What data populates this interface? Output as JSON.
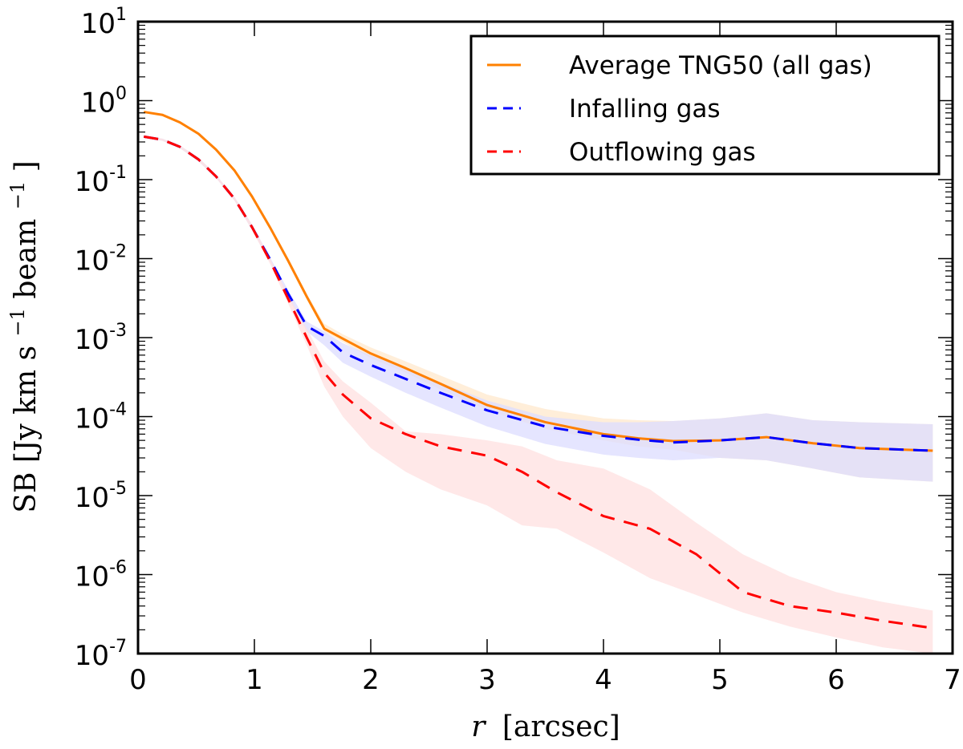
{
  "chart_data": {
    "type": "line",
    "title": "",
    "xlabel": "r [arcsec]",
    "xlabel_var": "r",
    "xlabel_unit": "[arcsec]",
    "ylabel": "SB [Jy km s^-1 beam^-1]",
    "ylabel_parts": {
      "main": "SB",
      "unit_open": "[Jy km s",
      "sup1": "−1",
      "mid": " beam",
      "sup2": "−1",
      "close": "]"
    },
    "xlim": [
      0,
      7
    ],
    "ylim": [
      1e-07,
      10
    ],
    "yscale": "log",
    "grid": false,
    "legend_position": "top-right",
    "xticks": [
      0,
      1,
      2,
      3,
      4,
      5,
      6,
      7
    ],
    "xtick_labels": [
      "0",
      "1",
      "2",
      "3",
      "4",
      "5",
      "6",
      "7"
    ],
    "yticks_exp": [
      1,
      0,
      -1,
      -2,
      -3,
      -4,
      -5,
      -6,
      -7
    ],
    "ytick_base": "10",
    "series": [
      {
        "name": "Average TNG50 (all gas)",
        "color": "#ff8000",
        "style": "solid",
        "band_color": "#ffe8cc",
        "x": [
          0.05,
          0.21,
          0.36,
          0.52,
          0.67,
          0.83,
          0.98,
          1.14,
          1.29,
          1.45,
          1.6,
          1.76,
          2.0,
          2.3,
          2.6,
          3.0,
          3.5,
          4.0,
          4.3,
          4.6,
          5.0,
          5.4,
          5.8,
          6.2,
          6.83
        ],
        "values": [
          0.72,
          0.66,
          0.53,
          0.38,
          0.24,
          0.13,
          0.061,
          0.024,
          0.0094,
          0.0033,
          0.0013,
          0.00097,
          0.00063,
          0.00041,
          0.00026,
          0.00014,
          8.5e-05,
          6e-05,
          5.3e-05,
          4.9e-05,
          5e-05,
          5.5e-05,
          4.6e-05,
          4e-05,
          3.7e-05
        ],
        "lower": [
          0.7,
          0.64,
          0.51,
          0.37,
          0.23,
          0.125,
          0.058,
          0.023,
          0.009,
          0.0031,
          0.0012,
          0.00088,
          0.00055,
          0.00036,
          0.00022,
          0.00012,
          7e-05,
          5e-05,
          4.2e-05,
          3.8e-05,
          3e-05,
          2.8e-05,
          2.2e-05,
          1.7e-05,
          1.5e-05
        ],
        "upper": [
          0.74,
          0.68,
          0.55,
          0.4,
          0.25,
          0.135,
          0.064,
          0.025,
          0.0099,
          0.0036,
          0.0015,
          0.0011,
          0.00075,
          0.0005,
          0.00033,
          0.00019,
          0.000125,
          9.5e-05,
          9e-05,
          8.8e-05,
          9.5e-05,
          0.00011,
          9e-05,
          8.5e-05,
          8e-05
        ]
      },
      {
        "name": "Infalling gas",
        "color": "#0000ff",
        "style": "dashed",
        "band_color": "#dcdcff",
        "x": [
          0.05,
          0.21,
          0.36,
          0.52,
          0.67,
          0.83,
          0.98,
          1.14,
          1.29,
          1.45,
          1.6,
          1.76,
          2.0,
          2.3,
          2.6,
          3.0,
          3.5,
          4.0,
          4.3,
          4.6,
          5.0,
          5.4,
          5.8,
          6.2,
          6.83
        ],
        "values": [
          0.35,
          0.32,
          0.26,
          0.18,
          0.11,
          0.057,
          0.025,
          0.0095,
          0.0036,
          0.0014,
          0.00105,
          0.00065,
          0.00045,
          0.0003,
          0.0002,
          0.00012,
          7.5e-05,
          5.7e-05,
          5.1e-05,
          4.7e-05,
          5e-05,
          5.5e-05,
          4.6e-05,
          4e-05,
          3.7e-05
        ],
        "lower": [
          0.34,
          0.31,
          0.25,
          0.17,
          0.105,
          0.054,
          0.023,
          0.0088,
          0.0032,
          0.0012,
          0.0008,
          0.00048,
          0.00032,
          0.0002,
          0.00013,
          7.5e-05,
          4.5e-05,
          3.3e-05,
          3e-05,
          2.8e-05,
          3e-05,
          2.8e-05,
          2.2e-05,
          1.7e-05,
          1.5e-05
        ],
        "upper": [
          0.36,
          0.33,
          0.27,
          0.19,
          0.115,
          0.06,
          0.027,
          0.01,
          0.004,
          0.0016,
          0.0012,
          0.00085,
          0.0006,
          0.0004,
          0.00027,
          0.00016,
          0.0001,
          8.5e-05,
          8.5e-05,
          8.8e-05,
          9.5e-05,
          0.00011,
          9e-05,
          8.5e-05,
          8e-05
        ]
      },
      {
        "name": "Outflowing gas",
        "color": "#ff0000",
        "style": "dashed",
        "band_color": "#ffe0e0",
        "x": [
          0.05,
          0.21,
          0.36,
          0.52,
          0.67,
          0.83,
          0.98,
          1.14,
          1.29,
          1.45,
          1.6,
          1.76,
          2.0,
          2.3,
          2.6,
          3.0,
          3.3,
          3.6,
          4.0,
          4.4,
          4.8,
          5.2,
          5.6,
          6.0,
          6.4,
          6.83
        ],
        "values": [
          0.35,
          0.32,
          0.26,
          0.18,
          0.11,
          0.057,
          0.025,
          0.009,
          0.0031,
          0.001,
          0.00036,
          0.00019,
          9.5e-05,
          6e-05,
          4.2e-05,
          3.2e-05,
          2e-05,
          1.1e-05,
          5.5e-06,
          3.8e-06,
          1.8e-06,
          6e-07,
          4e-07,
          3.3e-07,
          2.6e-07,
          2.1e-07
        ],
        "lower": [
          0.34,
          0.31,
          0.25,
          0.17,
          0.105,
          0.054,
          0.023,
          0.0083,
          0.0027,
          0.0008,
          0.00024,
          0.0001,
          4e-05,
          2e-05,
          1.2e-05,
          7.5e-06,
          4.2e-06,
          3.8e-06,
          1.9e-06,
          9e-07,
          5.5e-07,
          3.3e-07,
          2.2e-07,
          1.6e-07,
          1.2e-07,
          1e-07
        ],
        "upper": [
          0.36,
          0.33,
          0.27,
          0.19,
          0.115,
          0.06,
          0.027,
          0.0097,
          0.0035,
          0.0013,
          0.0005,
          0.00028,
          0.00015,
          6.5e-05,
          6e-05,
          5e-05,
          4.2e-05,
          2.8e-05,
          2.2e-05,
          1.2e-05,
          4.5e-06,
          1.8e-06,
          9.5e-07,
          6e-07,
          4.5e-07,
          3.5e-07
        ]
      }
    ]
  }
}
